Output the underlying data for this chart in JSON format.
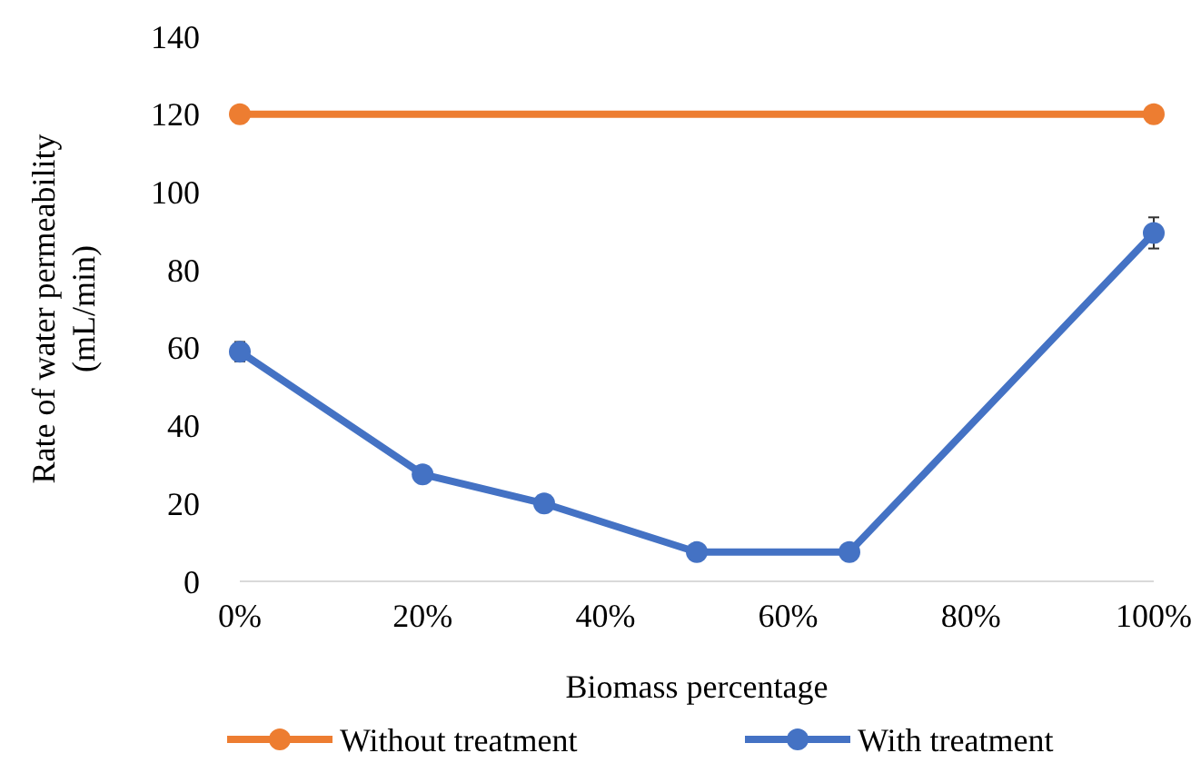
{
  "chart_data": {
    "type": "line",
    "xlabel": "Biomass percentage",
    "ylabel": "Rate of water permeability (mL/min)",
    "xlim": [
      0,
      100
    ],
    "xticks": [
      {
        "value": 0,
        "label": "0%"
      },
      {
        "value": 20,
        "label": "20%"
      },
      {
        "value": 40,
        "label": "40%"
      },
      {
        "value": 60,
        "label": "60%"
      },
      {
        "value": 80,
        "label": "80%"
      },
      {
        "value": 100,
        "label": "100%"
      }
    ],
    "ylim": [
      0,
      140
    ],
    "yticks": [
      0,
      20,
      40,
      60,
      80,
      100,
      120,
      140
    ],
    "series": [
      {
        "name": "Without treatment",
        "color": "#ed7d31",
        "x": [
          0,
          100
        ],
        "values": [
          120,
          120
        ]
      },
      {
        "name": "With treatment",
        "color": "#4472c4",
        "x": [
          0,
          20,
          33.3,
          50,
          66.7,
          100
        ],
        "values": [
          59,
          27.5,
          20,
          7.5,
          7.5,
          89.5
        ],
        "errors": [
          2.5,
          1,
          1,
          1,
          1,
          4
        ]
      }
    ],
    "marker": "circle",
    "line_style": "solid",
    "legend": "bottom",
    "grid": false
  }
}
